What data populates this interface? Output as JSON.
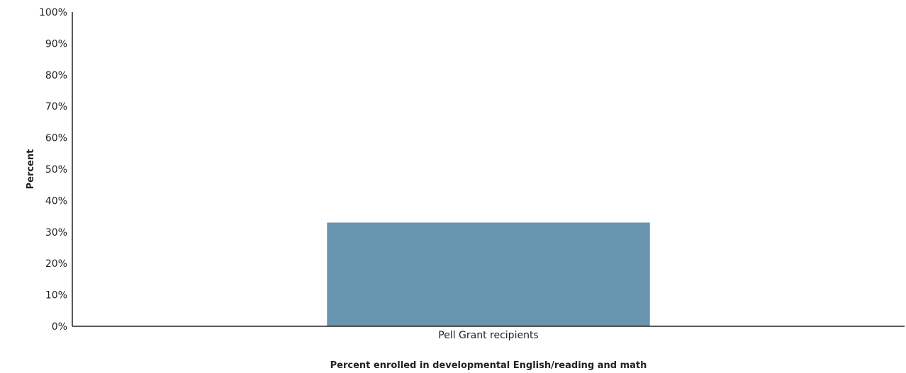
{
  "chart_data": {
    "type": "bar",
    "categories": [
      "Pell Grant recipients"
    ],
    "values": [
      33
    ],
    "xlabel": "Percent enrolled in developmental English/reading and math",
    "ylabel": "Percent",
    "ylim": [
      0,
      100
    ],
    "yticks": [
      0,
      10,
      20,
      30,
      40,
      50,
      60,
      70,
      80,
      90,
      100
    ],
    "ytick_suffix": "%",
    "grid": false,
    "bar_color": "#6896b0",
    "axis_color": "#222222"
  }
}
